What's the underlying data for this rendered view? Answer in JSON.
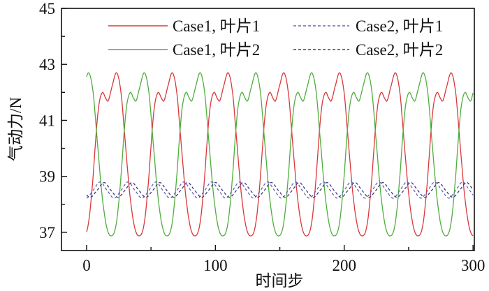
{
  "chart_data": {
    "type": "line",
    "title": "",
    "xlabel": "时间步",
    "ylabel": "气动力/N",
    "xlim": [
      -19.5,
      301
    ],
    "ylim": [
      36.35,
      45
    ],
    "x_ticks": [
      0,
      100,
      200,
      300
    ],
    "x_tick_labels": [
      "0",
      "100",
      "200",
      "300"
    ],
    "x_minor_ticks": [
      50,
      150,
      250
    ],
    "y_ticks": [
      37,
      39,
      41,
      43,
      45
    ],
    "y_tick_labels": [
      "37",
      "39",
      "41",
      "43",
      "45"
    ],
    "y_minor_ticks": [
      38,
      40,
      42,
      44
    ],
    "grid": false,
    "legend_position": "top",
    "x_range": [
      0,
      300
    ],
    "series": [
      {
        "name": "Case1, 叶片1",
        "color": "#d9383a",
        "dash": "solid",
        "period": 43.3,
        "min_at": -1.3,
        "waveform": [
          [
            0,
            36.9
          ],
          [
            3,
            37.4
          ],
          [
            6,
            38.8
          ],
          [
            9,
            40.7
          ],
          [
            11,
            41.6
          ],
          [
            13.6,
            42.0
          ],
          [
            16,
            41.8
          ],
          [
            18.1,
            41.7
          ],
          [
            21,
            42.2
          ],
          [
            24.6,
            42.7
          ],
          [
            28,
            42.0
          ],
          [
            31,
            40.4
          ],
          [
            35,
            38.3
          ],
          [
            39,
            37.1
          ]
        ]
      },
      {
        "name": "Case1, 叶片2",
        "color": "#4fae3c",
        "dash": "solid",
        "period": 43.3,
        "min_at": 20.35,
        "waveform": [
          [
            0,
            36.9
          ],
          [
            3,
            37.4
          ],
          [
            6,
            38.8
          ],
          [
            9,
            40.7
          ],
          [
            11,
            41.6
          ],
          [
            13.6,
            42.0
          ],
          [
            16,
            41.8
          ],
          [
            18.1,
            41.7
          ],
          [
            21,
            42.2
          ],
          [
            24.6,
            42.7
          ],
          [
            28,
            42.0
          ],
          [
            31,
            40.4
          ],
          [
            35,
            38.3
          ],
          [
            39,
            37.1
          ]
        ]
      },
      {
        "name": "Case2, 叶片1",
        "color": "#6b63b5",
        "dash": "dashed",
        "period": 21.65,
        "min_at": -0.3,
        "waveform": [
          [
            0,
            38.22
          ],
          [
            5.4,
            38.5
          ],
          [
            10.8,
            38.8
          ],
          [
            16.2,
            38.5
          ]
        ]
      },
      {
        "name": "Case2, 叶片2",
        "color": "#3d3a7a",
        "dash": "dashed",
        "period": 21.65,
        "min_at": 2.7,
        "waveform": [
          [
            0,
            38.25
          ],
          [
            5.4,
            38.5
          ],
          [
            10.8,
            38.78
          ],
          [
            16.2,
            38.5
          ]
        ]
      }
    ]
  }
}
